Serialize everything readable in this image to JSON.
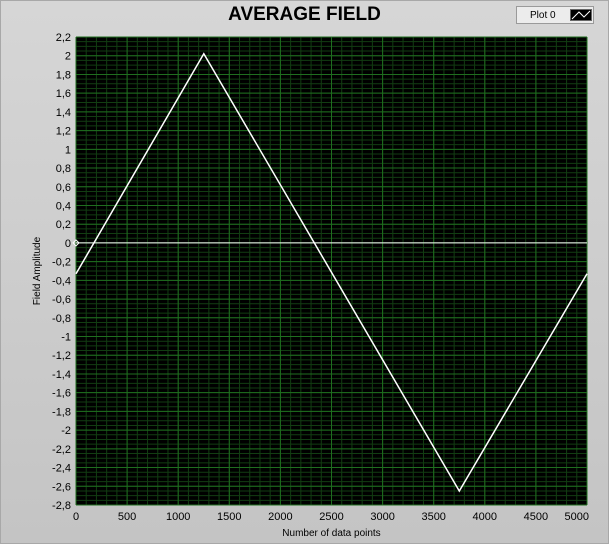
{
  "window": {
    "title": "AVERAGE FIELD",
    "legend_label": "Plot 0"
  },
  "colors": {
    "plot_background": "#000000",
    "grid_major": "#1f6e1f",
    "grid_minor": "#123d12",
    "trace": "#ffffff",
    "panel": "#c9c9c9"
  },
  "chart_data": {
    "type": "line",
    "title": "AVERAGE FIELD",
    "xlabel": "Number of data points",
    "ylabel": "Field Amplitude",
    "xlim": [
      0,
      5000
    ],
    "ylim": [
      -2.8,
      2.2
    ],
    "grid": true,
    "legend_placement": "top-right",
    "x_ticks": [
      "0",
      "500",
      "1000",
      "1500",
      "2000",
      "2500",
      "3000",
      "3500",
      "4000",
      "4500",
      "5000"
    ],
    "y_ticks": [
      "2,2",
      "2",
      "1,8",
      "1,6",
      "1,4",
      "1,2",
      "1",
      "0,8",
      "0,6",
      "0,4",
      "0,2",
      "0",
      "-0,2",
      "-0,4",
      "-0,6",
      "-0,8",
      "-1",
      "-1,2",
      "-1,4",
      "-1,6",
      "-1,8",
      "-2",
      "-2,2",
      "-2,4",
      "-2,6",
      "-2,8"
    ],
    "series": [
      {
        "name": "Plot 0",
        "x": [
          0,
          1250,
          3750,
          5000
        ],
        "y": [
          -0.33,
          2.02,
          -2.65,
          -0.33
        ]
      }
    ],
    "annotations": [
      {
        "type": "hline",
        "y": 0
      }
    ]
  }
}
